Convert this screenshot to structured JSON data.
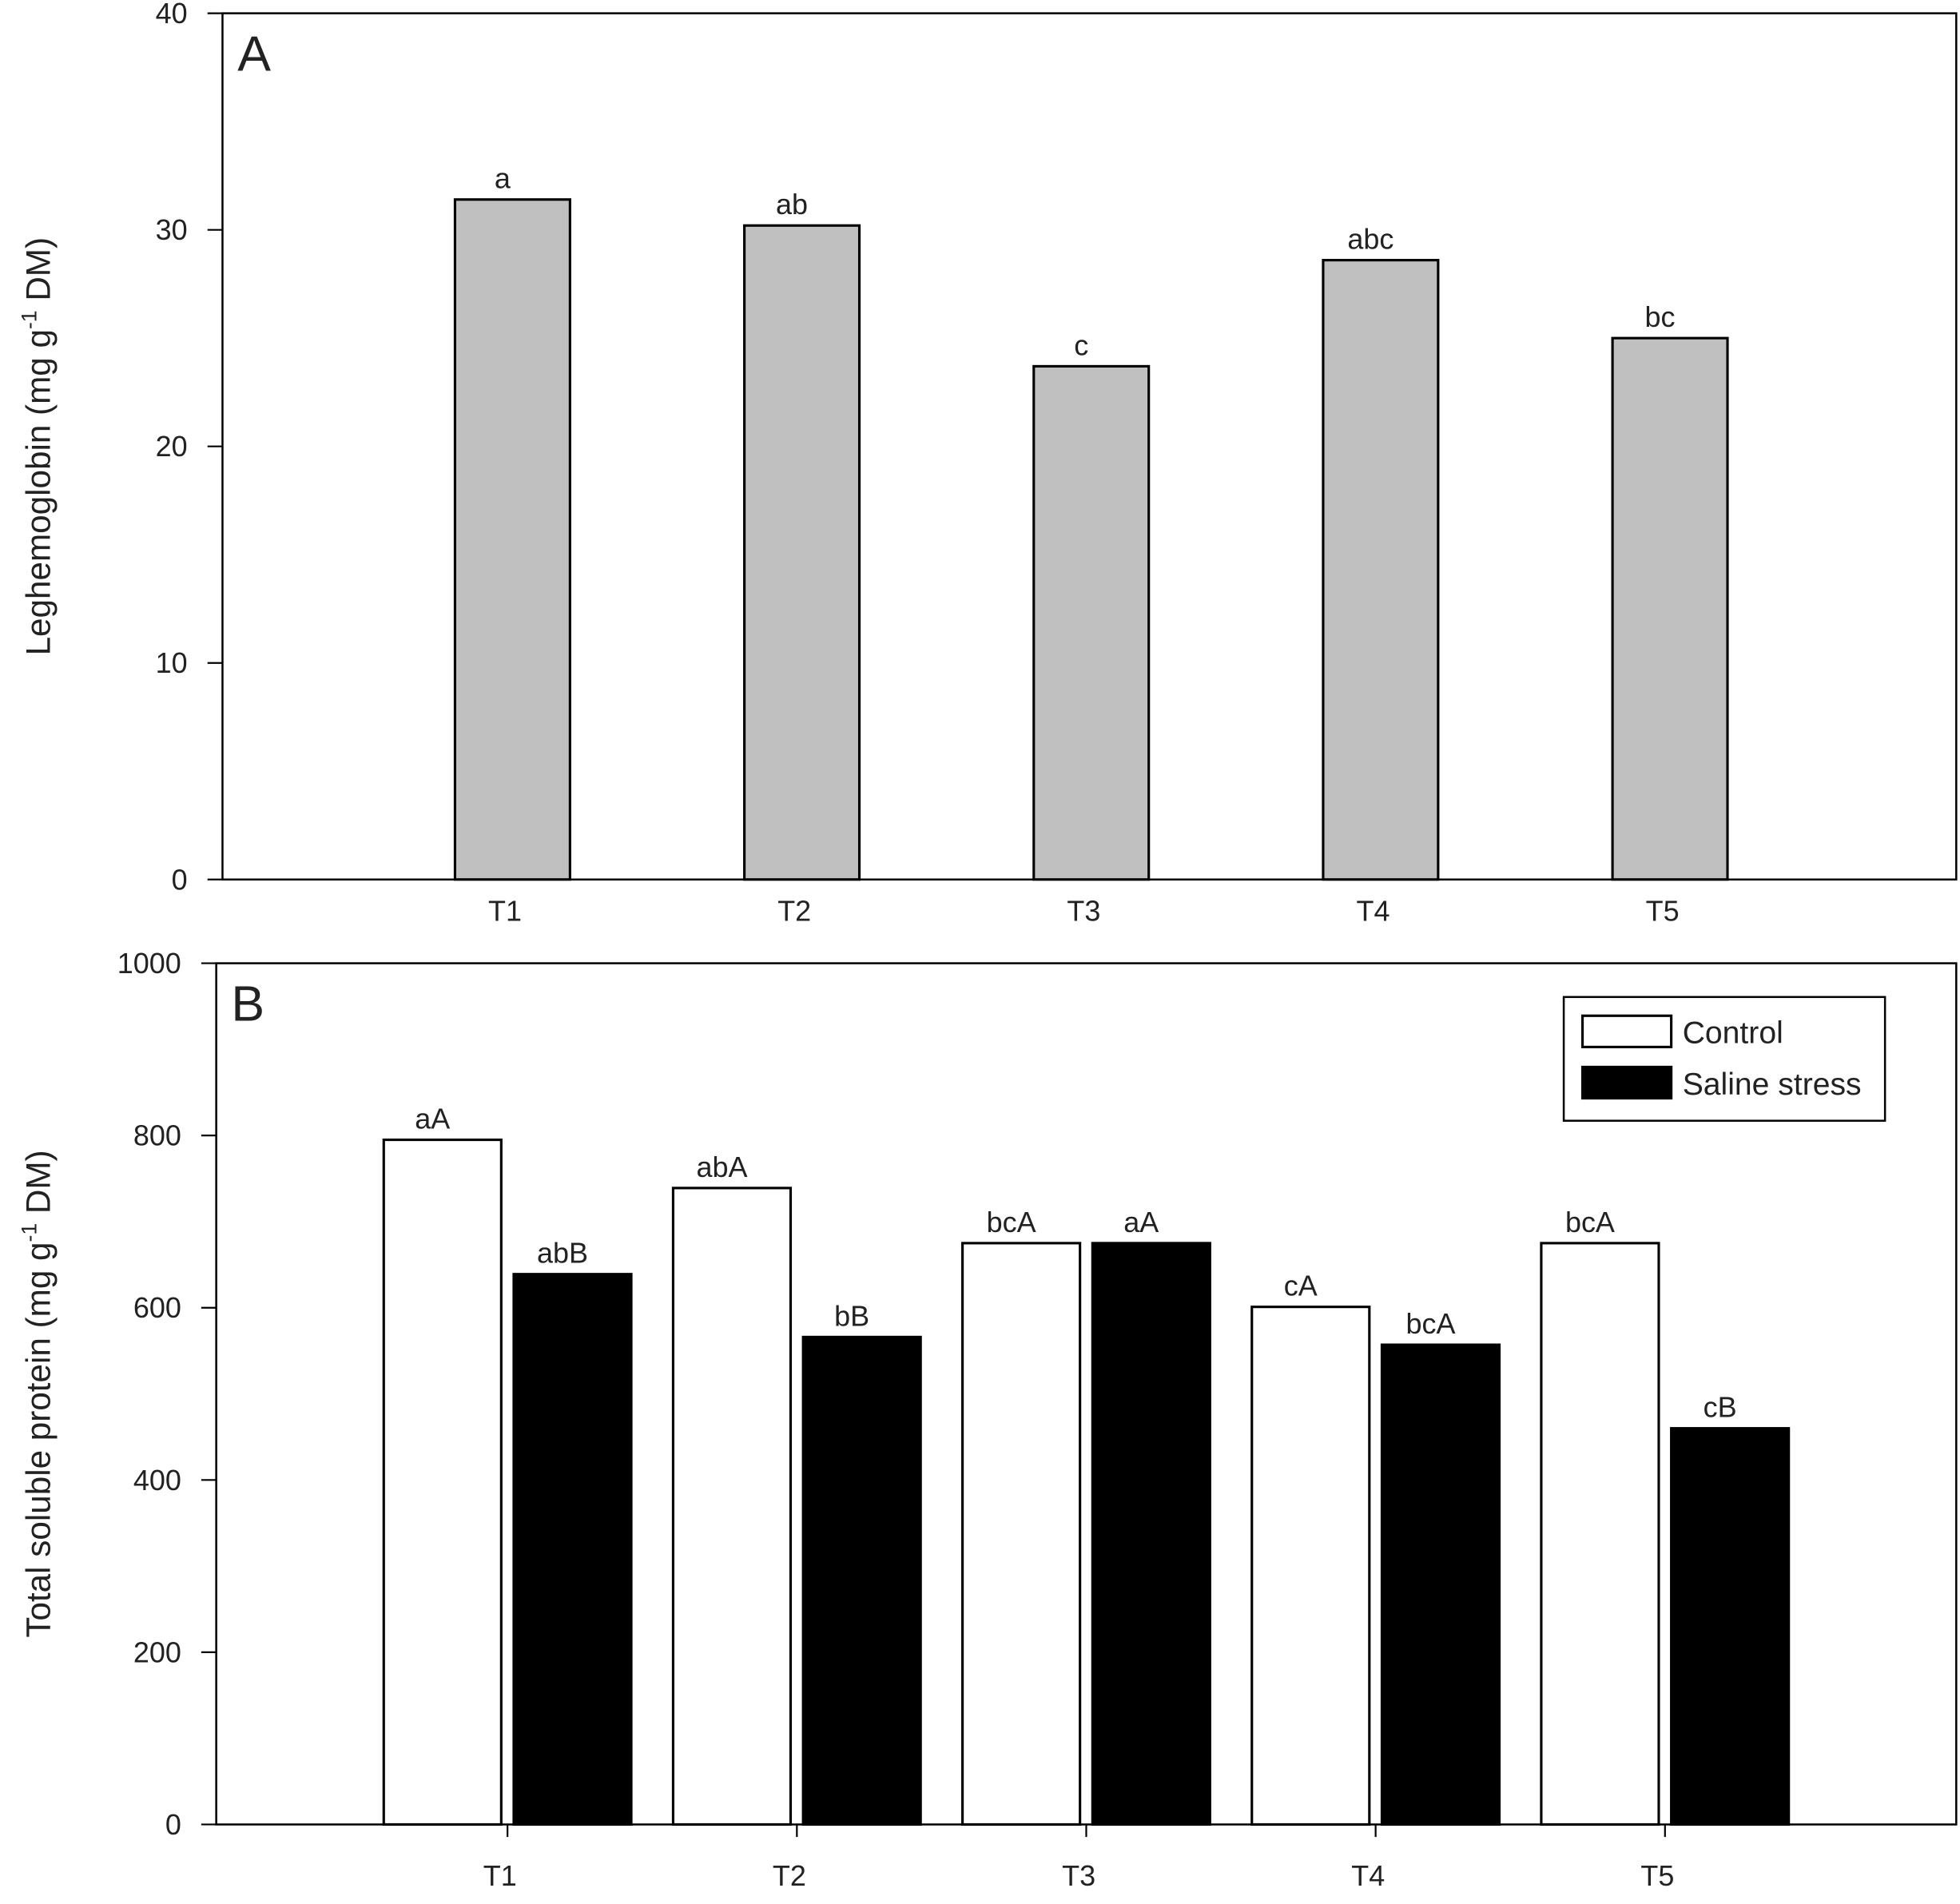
{
  "chart_data": [
    {
      "type": "bar",
      "panel_label": "A",
      "ylabel": [
        "Leghemoglobin (mg g",
        "-1",
        " DM)"
      ],
      "categories": [
        "T1",
        "T2",
        "T3",
        "T4",
        "T5"
      ],
      "values": [
        31.4,
        30.2,
        23.7,
        28.6,
        25.0
      ],
      "annotations": [
        "a",
        "ab",
        "c",
        "abc",
        "bc"
      ],
      "color": "#c0c0c0",
      "ylim": [
        0,
        40
      ],
      "yticks": [
        0,
        10,
        20,
        30,
        40
      ]
    },
    {
      "type": "bar",
      "panel_label": "B",
      "ylabel": [
        "Total soluble protein (mg g",
        "-1",
        " DM)"
      ],
      "categories": [
        "T1",
        "T2",
        "T3",
        "T4",
        "T5"
      ],
      "series": [
        {
          "name": "Control",
          "color": "#ffffff",
          "values": [
            795,
            739,
            675,
            601,
            675
          ],
          "annotations": [
            "aA",
            "abA",
            "bcA",
            "cA",
            "bcA"
          ]
        },
        {
          "name": "Saline stress",
          "color": "#000000",
          "values": [
            639,
            566,
            675,
            557,
            460
          ],
          "annotations": [
            "abB",
            "bB",
            "aA",
            "bcA",
            "cB"
          ]
        }
      ],
      "ylim": [
        0,
        1000
      ],
      "yticks": [
        0,
        200,
        400,
        600,
        800,
        1000
      ],
      "legend": "upper right"
    }
  ]
}
